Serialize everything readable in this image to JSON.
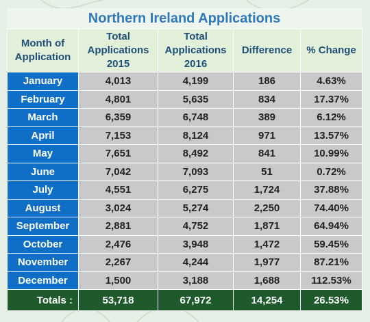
{
  "title": "Northern Ireland Applications",
  "headers": {
    "month": "Month of Application",
    "total2015": "Total Applications 2015",
    "total2016": "Total Applications 2016",
    "difference": "Difference",
    "pct": "% Change"
  },
  "rows": [
    {
      "month": "January",
      "y2015": "4,013",
      "y2016": "4,199",
      "diff": "186",
      "pct": "4.63%"
    },
    {
      "month": "February",
      "y2015": "4,801",
      "y2016": "5,635",
      "diff": "834",
      "pct": "17.37%"
    },
    {
      "month": "March",
      "y2015": "6,359",
      "y2016": "6,748",
      "diff": "389",
      "pct": "6.12%"
    },
    {
      "month": "April",
      "y2015": "7,153",
      "y2016": "8,124",
      "diff": "971",
      "pct": "13.57%"
    },
    {
      "month": "May",
      "y2015": "7,651",
      "y2016": "8,492",
      "diff": "841",
      "pct": "10.99%"
    },
    {
      "month": "June",
      "y2015": "7,042",
      "y2016": "7,093",
      "diff": "51",
      "pct": "0.72%"
    },
    {
      "month": "July",
      "y2015": "4,551",
      "y2016": "6,275",
      "diff": "1,724",
      "pct": "37.88%"
    },
    {
      "month": "August",
      "y2015": "3,024",
      "y2016": "5,274",
      "diff": "2,250",
      "pct": "74.40%"
    },
    {
      "month": "September",
      "y2015": "2,881",
      "y2016": "4,752",
      "diff": "1,871",
      "pct": "64.94%"
    },
    {
      "month": "October",
      "y2015": "2,476",
      "y2016": "3,948",
      "diff": "1,472",
      "pct": "59.45%"
    },
    {
      "month": "November",
      "y2015": "2,267",
      "y2016": "4,244",
      "diff": "1,977",
      "pct": "87.21%"
    },
    {
      "month": "December",
      "y2015": "1,500",
      "y2016": "3,188",
      "diff": "1,688",
      "pct": "112.53%"
    }
  ],
  "totals": {
    "label": "Totals :",
    "y2015": "53,718",
    "y2016": "67,972",
    "diff": "14,254",
    "pct": "26.53%"
  },
  "colors": {
    "header_bg": "#e2f0d9",
    "month_bg": "#0f6fc6",
    "cell_bg": "#c9c9c9",
    "totals_bg": "#1e5a2b",
    "title": "#2f79b9"
  }
}
